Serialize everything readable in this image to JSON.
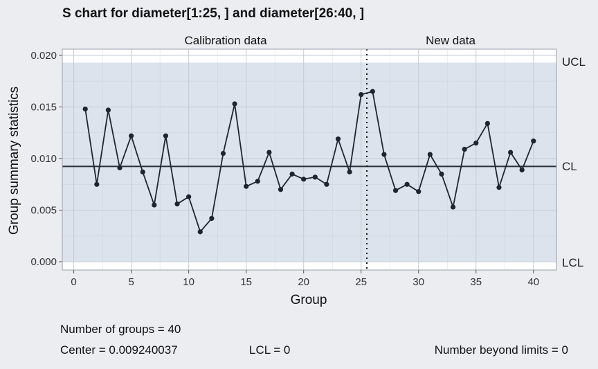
{
  "chart_data": {
    "type": "line",
    "title": "S chart for diameter[1:25, ] and diameter[26:40, ]",
    "xlabel": "Group",
    "ylabel": "Group summary statistics",
    "xlim": [
      -1,
      42
    ],
    "ylim": [
      -0.0008,
      0.0206
    ],
    "x_ticks": [
      0,
      5,
      10,
      15,
      20,
      25,
      30,
      35,
      40
    ],
    "y_ticks": [
      0.0,
      0.005,
      0.01,
      0.015,
      0.02
    ],
    "y_tick_labels": [
      "0.000",
      "0.005",
      "0.010",
      "0.015",
      "0.020"
    ],
    "grid": true,
    "phases": [
      {
        "label": "Calibration data",
        "groups": [
          1,
          25
        ]
      },
      {
        "label": "New data",
        "groups": [
          26,
          40
        ]
      }
    ],
    "phase_divider_x": 25.5,
    "limits": {
      "UCL": {
        "label": "UCL",
        "value": 0.0193
      },
      "CL": {
        "label": "CL",
        "value": 0.009240037
      },
      "LCL": {
        "label": "LCL",
        "value": 0.0
      }
    },
    "series": [
      {
        "x": [
          1,
          2,
          3,
          4,
          5,
          6,
          7,
          8,
          9,
          10,
          11,
          12,
          13,
          14,
          15,
          16,
          17,
          18,
          19,
          20,
          21,
          22,
          23,
          24,
          25,
          26,
          27,
          28,
          29,
          30,
          31,
          32,
          33,
          34,
          35,
          36,
          37,
          38,
          39,
          40
        ],
        "values": [
          0.0148,
          0.0075,
          0.0147,
          0.0091,
          0.0122,
          0.0087,
          0.0055,
          0.0122,
          0.0056,
          0.0063,
          0.0029,
          0.0042,
          0.0105,
          0.0153,
          0.0073,
          0.0078,
          0.0106,
          0.007,
          0.0085,
          0.008,
          0.0082,
          0.0075,
          0.0119,
          0.0087,
          0.0162,
          0.0165,
          0.0104,
          0.0069,
          0.0075,
          0.0068,
          0.0104,
          0.0085,
          0.0053,
          0.0109,
          0.0115,
          0.0134,
          0.0072,
          0.0106,
          0.0089,
          0.0117
        ]
      }
    ],
    "colors": {
      "background": "#ebedf0",
      "control_region": "#dde3ec",
      "line": "#1f2430",
      "point": "#1f2430",
      "grid": "#c4cbd6"
    }
  },
  "summary": {
    "groups": "Number of groups = 40",
    "center": "Center = 0.009240037",
    "lcl": "LCL = 0",
    "beyond": "Number beyond limits = 0"
  }
}
